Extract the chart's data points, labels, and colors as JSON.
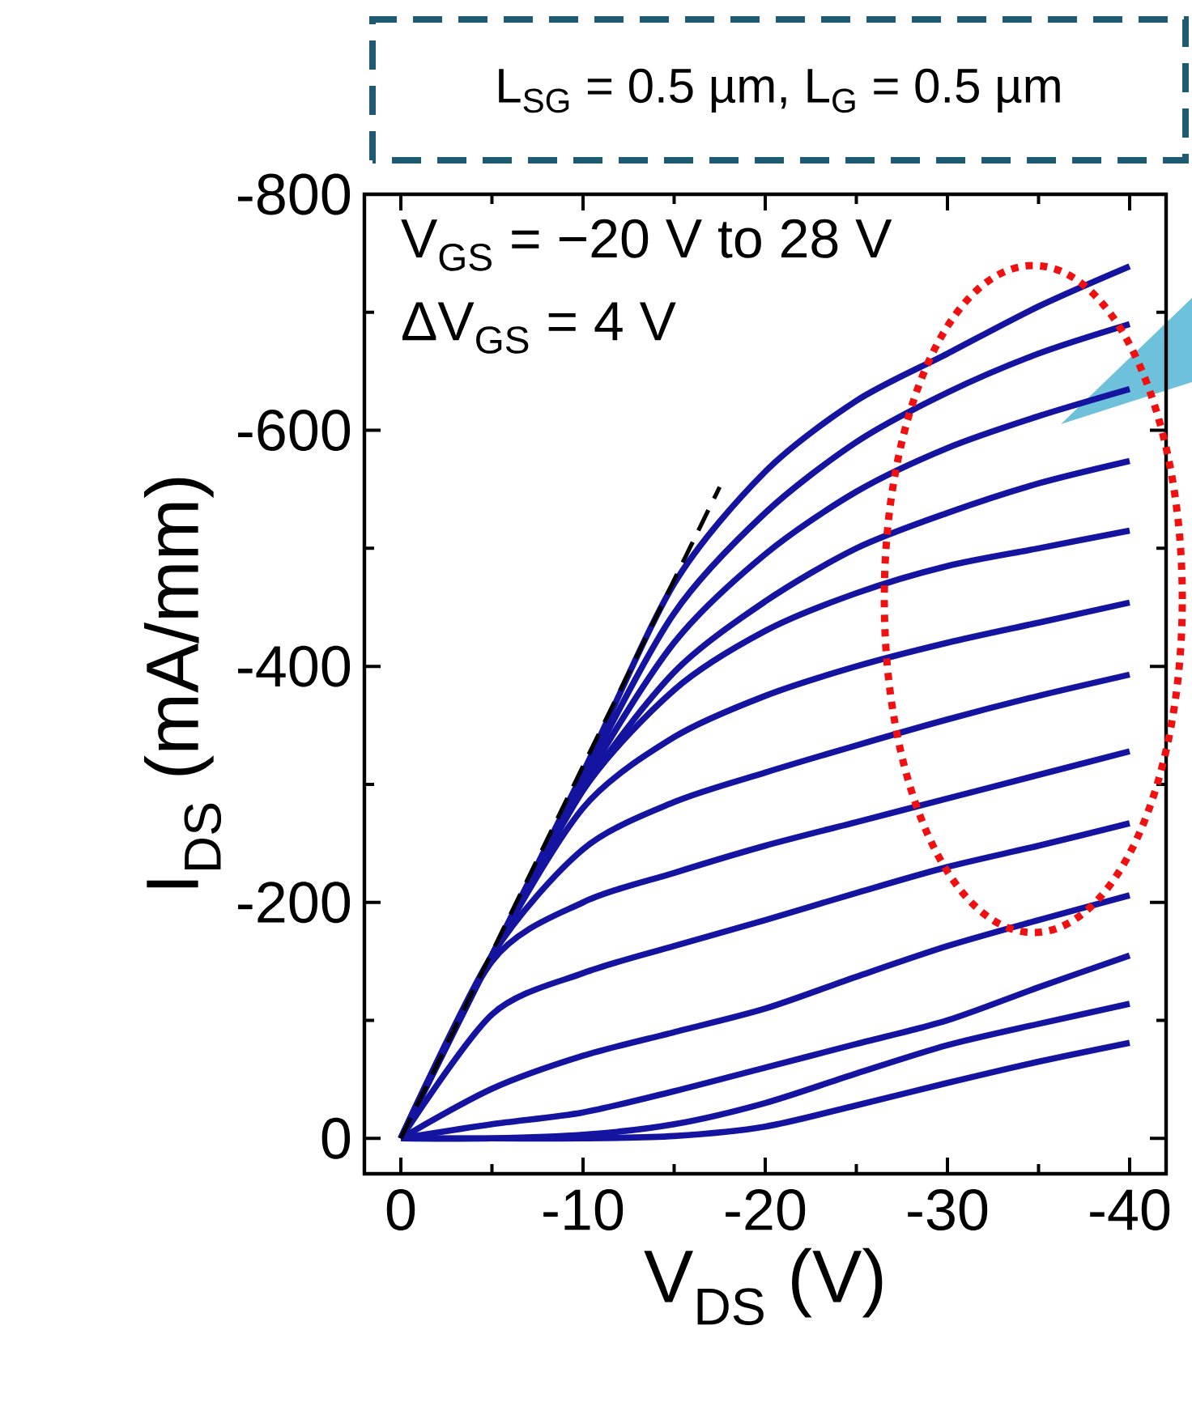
{
  "chart_data": {
    "type": "line",
    "title": "L$_{SG}$ = 0.5 µm, L$_{G}$ = 0.5 µm",
    "xlabel": "V$_{DS}$ (V)",
    "ylabel": "I$_{DS}$ (mA/mm)",
    "annotations": [
      "V$_{GS}$ = −20 V to 28 V",
      "ΔV$_{GS}$ = 4 V"
    ],
    "x": [
      0,
      -5,
      -10,
      -15,
      -20,
      -25,
      -30,
      -35,
      -40
    ],
    "xlim": [
      2,
      -42
    ],
    "ylim": [
      30,
      -800
    ],
    "xticks": [
      0,
      {
        "value": -5,
        "label": null
      },
      -10,
      {
        "value": -15,
        "label": null
      },
      -20,
      {
        "value": -25,
        "label": null
      },
      -30,
      {
        "value": -35,
        "label": null
      },
      -40
    ],
    "yticks": [
      0,
      {
        "value": -100,
        "label": null
      },
      -200,
      {
        "value": -300,
        "label": null
      },
      -400,
      {
        "value": -500,
        "label": null
      },
      -600,
      {
        "value": -700,
        "label": null
      },
      -800
    ],
    "marker": "none",
    "series": [
      {
        "color": "#1414a0",
        "values": [
          0,
          -155,
          -310,
          -470,
          -565,
          -625,
          -665,
          -705,
          -739
        ]
      },
      {
        "color": "#1414a0",
        "values": [
          0,
          -155,
          -305,
          -445,
          -530,
          -590,
          -632,
          -665,
          -690
        ]
      },
      {
        "color": "#1414a0",
        "values": [
          0,
          -155,
          -300,
          -420,
          -495,
          -548,
          -585,
          -612,
          -635
        ]
      },
      {
        "color": "#1414a0",
        "values": [
          0,
          -155,
          -295,
          -395,
          -455,
          -500,
          -530,
          -555,
          -574
        ]
      },
      {
        "color": "#1414a0",
        "values": [
          0,
          -155,
          -295,
          -380,
          -430,
          -462,
          -485,
          -500,
          -515
        ]
      },
      {
        "color": "#1414a0",
        "values": [
          0,
          -155,
          -280,
          -340,
          -375,
          -400,
          -420,
          -437,
          -454
        ]
      },
      {
        "color": "#1414a0",
        "values": [
          0,
          -155,
          -245,
          -285,
          -310,
          -333,
          -355,
          -375,
          -393
        ]
      },
      {
        "color": "#1414a0",
        "values": [
          0,
          -150,
          -200,
          -225,
          -248,
          -268,
          -288,
          -308,
          -328
        ]
      },
      {
        "color": "#1414a0",
        "values": [
          0,
          -105,
          -140,
          -163,
          -185,
          -208,
          -230,
          -248,
          -267
        ]
      },
      {
        "color": "#1414a0",
        "values": [
          0,
          -42,
          -70,
          -90,
          -110,
          -137,
          -163,
          -185,
          -206
        ]
      },
      {
        "color": "#1414a0",
        "values": [
          0,
          -12,
          -22,
          -40,
          -60,
          -80,
          -100,
          -128,
          -155
        ]
      },
      {
        "color": "#1414a0",
        "values": [
          0,
          0,
          -3,
          -12,
          -30,
          -55,
          -79,
          -97,
          -114
        ]
      },
      {
        "color": "#1414a0",
        "values": [
          0,
          0,
          0,
          -2,
          -10,
          -28,
          -47,
          -65,
          -81
        ]
      },
      {
        "type": "line",
        "color": "#000000",
        "line_style": "dashed",
        "x": [
          0,
          -17.5
        ],
        "values": [
          0,
          -552
        ]
      }
    ]
  }
}
